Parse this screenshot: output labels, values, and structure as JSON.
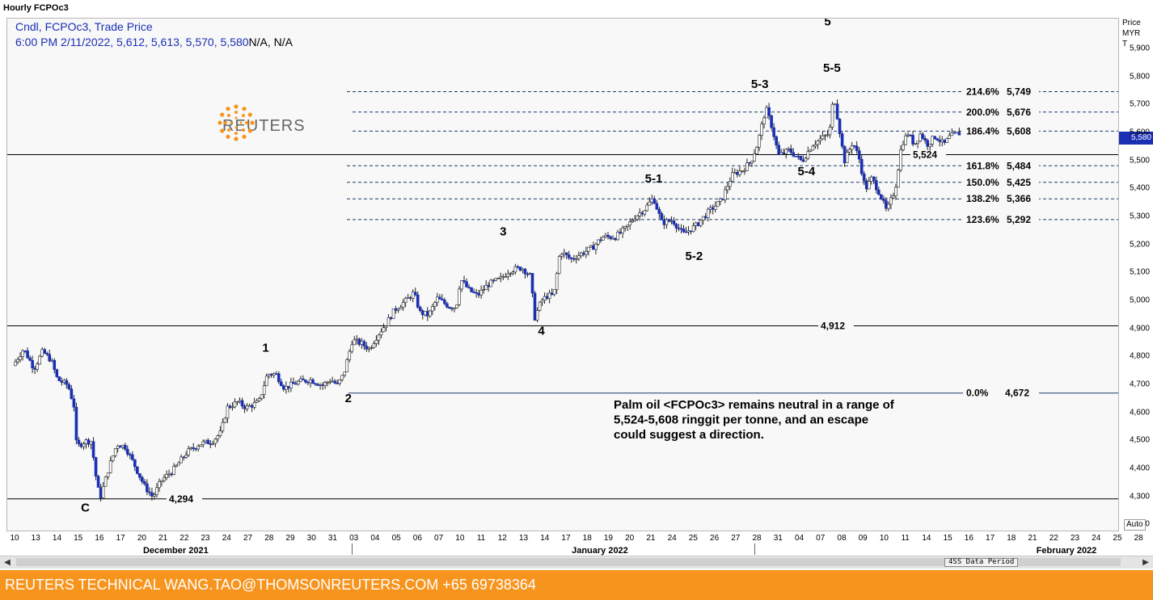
{
  "chart_title": "Hourly FCPOc3",
  "info_line1": "Cndl, FCPOc3, Trade Price",
  "info_line2_values": "6:00 PM 2/11/2022, 5,612, 5,613, 5,570, 5,580",
  "info_line2_rest": "N/A, N/A",
  "logo_text": "REUTERS",
  "colors": {
    "candle": "#1a2fb4",
    "fib_line": "#1a3a6b",
    "footer": "#f7941d"
  },
  "y_header": [
    "Price",
    "MYR",
    "T"
  ],
  "last_price_marker": "5,580",
  "auto_label": "Auto",
  "period_label": "4SS Data Period",
  "footer_text": "REUTERS TECHNICAL  WANG.TAO@THOMSONREUTERS.COM  +65 69738364",
  "annotation": {
    "lines": [
      "Palm oil <FCPOc3> remains neutral in a range of",
      "5,524-5,608 ringgit per tonne, and an escape",
      "could suggest a direction."
    ]
  },
  "chart_data": {
    "type": "candlestick",
    "ylim": [
      4175,
      6010
    ],
    "y_ticks": [
      4200,
      4300,
      4400,
      4500,
      4600,
      4700,
      4800,
      4900,
      5000,
      5100,
      5200,
      5300,
      5400,
      5500,
      5600,
      5700,
      5800,
      5900
    ],
    "y_tick_labels": [
      "4,200",
      "4,300",
      "4,400",
      "4,500",
      "4,600",
      "4,700",
      "4,800",
      "4,900",
      "5,000",
      "5,100",
      "5,200",
      "5,300",
      "5,400",
      "5,500",
      "5,600",
      "5,700",
      "5,800",
      "5,900"
    ],
    "x_ticks": [
      "10",
      "13",
      "14",
      "15",
      "16",
      "17",
      "20",
      "21",
      "22",
      "23",
      "24",
      "27",
      "28",
      "29",
      "30",
      "31",
      "03",
      "04",
      "05",
      "06",
      "07",
      "10",
      "11",
      "12",
      "13",
      "14",
      "17",
      "18",
      "19",
      "20",
      "21",
      "24",
      "25",
      "26",
      "27",
      "28",
      "31",
      "04",
      "07",
      "08",
      "09",
      "10",
      "11",
      "14",
      "15",
      "16",
      "17",
      "18",
      "21",
      "22",
      "23",
      "24",
      "25",
      "28"
    ],
    "months": [
      {
        "label": "December 2021",
        "tick": 4
      },
      {
        "label": "January 2022",
        "tick": 24
      },
      {
        "label": "February 2022",
        "tick": 46
      }
    ],
    "fib_levels": [
      {
        "label": "214.6%",
        "price": 5749,
        "price_label": "5,749"
      },
      {
        "label": "200.0%",
        "price": 5676,
        "price_label": "5,676"
      },
      {
        "label": "186.4%",
        "price": 5608,
        "price_label": "5,608"
      },
      {
        "label": "161.8%",
        "price": 5484,
        "price_label": "5,484"
      },
      {
        "label": "150.0%",
        "price": 5425,
        "price_label": "5,425"
      },
      {
        "label": "138.2%",
        "price": 5366,
        "price_label": "5,366"
      },
      {
        "label": "123.6%",
        "price": 5292,
        "price_label": "5,292"
      },
      {
        "label": "0.0%",
        "price": 4672,
        "price_label": "4,672"
      }
    ],
    "support_lines": [
      {
        "price": 5524,
        "label": "5,524"
      },
      {
        "price": 4912,
        "label": "4,912"
      },
      {
        "price": 4294,
        "label": "4,294"
      }
    ],
    "wave_labels": [
      {
        "text": "C",
        "tick": 3.3,
        "price": 4248
      },
      {
        "text": "1",
        "tick": 11.8,
        "price": 4820
      },
      {
        "text": "2",
        "tick": 15.7,
        "price": 4640
      },
      {
        "text": "3",
        "tick": 23.0,
        "price": 5235
      },
      {
        "text": "4",
        "tick": 24.8,
        "price": 4880
      },
      {
        "text": "5-1",
        "tick": 30.1,
        "price": 5425
      },
      {
        "text": "5-2",
        "tick": 32.0,
        "price": 5148
      },
      {
        "text": "5-3",
        "tick": 35.1,
        "price": 5762
      },
      {
        "text": "5-4",
        "tick": 37.3,
        "price": 5450
      },
      {
        "text": "5-5",
        "tick": 38.5,
        "price": 5820
      },
      {
        "text": "5",
        "tick": 38.3,
        "price": 5985
      }
    ],
    "price_path": [
      [
        0,
        4770
      ],
      [
        0.5,
        4830
      ],
      [
        1.0,
        4760
      ],
      [
        1.4,
        4820
      ],
      [
        1.8,
        4790
      ],
      [
        2.1,
        4720
      ],
      [
        2.6,
        4700
      ],
      [
        2.9,
        4620
      ],
      [
        3.0,
        4480
      ],
      [
        3.4,
        4500
      ],
      [
        3.7,
        4500
      ],
      [
        3.9,
        4380
      ],
      [
        4.1,
        4294
      ],
      [
        4.5,
        4400
      ],
      [
        4.9,
        4490
      ],
      [
        5.3,
        4480
      ],
      [
        5.7,
        4420
      ],
      [
        6.2,
        4340
      ],
      [
        6.6,
        4300
      ],
      [
        7.0,
        4360
      ],
      [
        7.6,
        4400
      ],
      [
        8.2,
        4460
      ],
      [
        8.8,
        4490
      ],
      [
        9.4,
        4500
      ],
      [
        9.8,
        4530
      ],
      [
        10.1,
        4620
      ],
      [
        10.6,
        4640
      ],
      [
        11.0,
        4620
      ],
      [
        11.6,
        4640
      ],
      [
        12.0,
        4740
      ],
      [
        12.4,
        4740
      ],
      [
        12.8,
        4690
      ],
      [
        13.4,
        4710
      ],
      [
        14.0,
        4720
      ],
      [
        14.6,
        4700
      ],
      [
        15.0,
        4720
      ],
      [
        15.3,
        4700
      ],
      [
        15.6,
        4740
      ],
      [
        16.0,
        4860
      ],
      [
        16.4,
        4850
      ],
      [
        16.8,
        4830
      ],
      [
        17.2,
        4880
      ],
      [
        17.6,
        4920
      ],
      [
        18.0,
        4970
      ],
      [
        18.5,
        5000
      ],
      [
        18.9,
        5030
      ],
      [
        19.2,
        4960
      ],
      [
        19.6,
        4950
      ],
      [
        20.0,
        5010
      ],
      [
        20.6,
        4980
      ],
      [
        20.9,
        4980
      ],
      [
        21.1,
        5080
      ],
      [
        21.5,
        5040
      ],
      [
        21.9,
        5020
      ],
      [
        22.4,
        5060
      ],
      [
        23.0,
        5080
      ],
      [
        23.4,
        5110
      ],
      [
        24.0,
        5120
      ],
      [
        24.4,
        5090
      ],
      [
        24.6,
        4940
      ],
      [
        24.9,
        5000
      ],
      [
        25.2,
        5020
      ],
      [
        25.5,
        5020
      ],
      [
        25.8,
        5180
      ],
      [
        26.3,
        5150
      ],
      [
        26.8,
        5170
      ],
      [
        27.3,
        5190
      ],
      [
        27.8,
        5230
      ],
      [
        28.4,
        5230
      ],
      [
        28.9,
        5260
      ],
      [
        29.3,
        5300
      ],
      [
        29.8,
        5330
      ],
      [
        30.2,
        5370
      ],
      [
        30.6,
        5280
      ],
      [
        31.1,
        5290
      ],
      [
        31.6,
        5240
      ],
      [
        32.2,
        5270
      ],
      [
        32.8,
        5320
      ],
      [
        33.4,
        5360
      ],
      [
        33.9,
        5450
      ],
      [
        34.4,
        5470
      ],
      [
        34.8,
        5500
      ],
      [
        35.1,
        5560
      ],
      [
        35.5,
        5690
      ],
      [
        35.8,
        5620
      ],
      [
        36.1,
        5520
      ],
      [
        36.6,
        5540
      ],
      [
        37.2,
        5500
      ],
      [
        37.7,
        5560
      ],
      [
        38.1,
        5580
      ],
      [
        38.5,
        5600
      ],
      [
        38.7,
        5740
      ],
      [
        39.0,
        5600
      ],
      [
        39.2,
        5500
      ],
      [
        39.6,
        5570
      ],
      [
        39.9,
        5510
      ],
      [
        40.2,
        5400
      ],
      [
        40.5,
        5440
      ],
      [
        40.9,
        5380
      ],
      [
        41.2,
        5320
      ],
      [
        41.4,
        5360
      ],
      [
        41.6,
        5400
      ],
      [
        41.9,
        5560
      ],
      [
        42.2,
        5600
      ],
      [
        42.5,
        5560
      ],
      [
        42.8,
        5600
      ],
      [
        43.1,
        5560
      ],
      [
        43.5,
        5590
      ],
      [
        43.9,
        5560
      ],
      [
        44.2,
        5590
      ],
      [
        44.6,
        5600
      ]
    ]
  }
}
